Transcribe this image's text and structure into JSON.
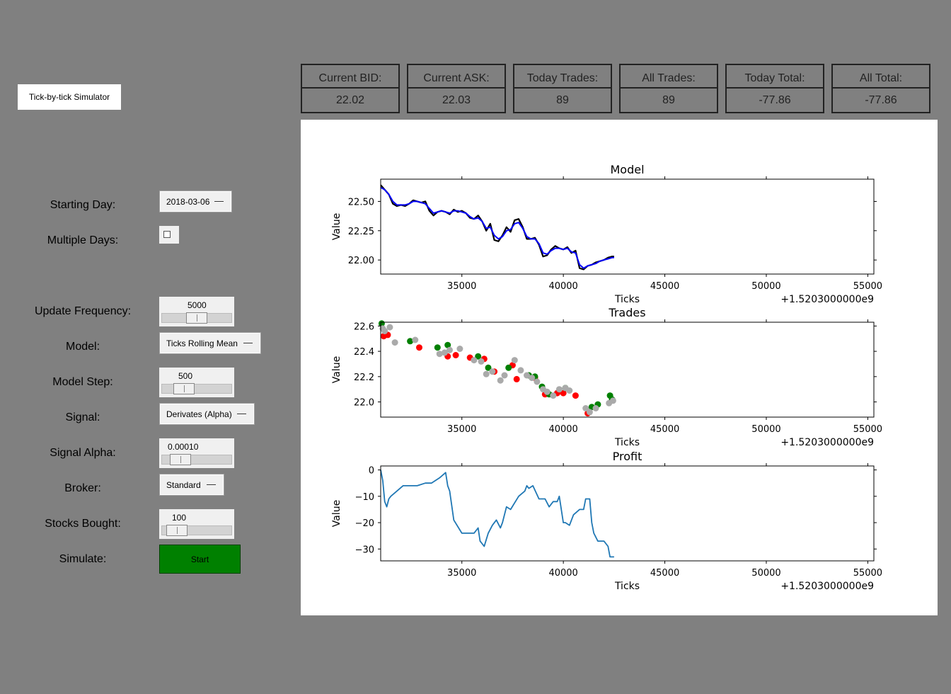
{
  "app": {
    "title_button": "Tick-by-tick Simulator"
  },
  "controls": {
    "starting_day": {
      "label": "Starting Day:",
      "value": "2018-03-06"
    },
    "multiple_days": {
      "label": "Multiple Days:",
      "checked": false
    },
    "update_frequency": {
      "label": "Update Frequency:",
      "value": "5000"
    },
    "model": {
      "label": "Model:",
      "value": "Ticks Rolling Mean"
    },
    "model_step": {
      "label": "Model Step:",
      "value": "500"
    },
    "signal": {
      "label": "Signal:",
      "value": "Derivates (Alpha)"
    },
    "signal_alpha": {
      "label": "Signal Alpha:",
      "value": "0.00010"
    },
    "broker": {
      "label": "Broker:",
      "value": "Standard"
    },
    "stocks_bought": {
      "label": "Stocks Bought:",
      "value": "100"
    },
    "simulate": {
      "label": "Simulate:",
      "button": "Start",
      "color": "#008000"
    }
  },
  "stats": [
    {
      "header": "Current BID:",
      "value": "22.02"
    },
    {
      "header": "Current ASK:",
      "value": "22.03"
    },
    {
      "header": "Today Trades:",
      "value": "89"
    },
    {
      "header": "All Trades:",
      "value": "89"
    },
    {
      "header": "Today Total:",
      "value": "-77.86"
    },
    {
      "header": "All Total:",
      "value": "-77.86"
    }
  ],
  "chart_data": [
    {
      "type": "line",
      "title": "Model",
      "xlabel": "Ticks",
      "ylabel": "Value",
      "x_offset_label": "+1.5203000000e9",
      "xlim": [
        31000,
        55300
      ],
      "ylim": [
        21.88,
        22.69
      ],
      "xticks": [
        35000,
        40000,
        45000,
        50000,
        55000
      ],
      "yticks": [
        22.0,
        22.25,
        22.5
      ],
      "ytick_labels": [
        "22.00",
        "22.25",
        "22.50"
      ],
      "series": [
        {
          "color": "#000000",
          "x": [
            31000,
            31200,
            31400,
            31600,
            31800,
            32000,
            32200,
            32400,
            32600,
            32800,
            33000,
            33200,
            33400,
            33600,
            33800,
            34000,
            34200,
            34400,
            34600,
            34800,
            35000,
            35200,
            35400,
            35600,
            35800,
            36000,
            36200,
            36400,
            36600,
            36800,
            37000,
            37200,
            37400,
            37600,
            37800,
            38000,
            38200,
            38400,
            38600,
            38800,
            39000,
            39200,
            39400,
            39600,
            39800,
            40000,
            40200,
            40400,
            40600,
            40800,
            41000,
            41200,
            41400,
            41600,
            41800,
            42000,
            42200,
            42400,
            42500
          ],
          "y": [
            22.64,
            22.6,
            22.56,
            22.48,
            22.46,
            22.47,
            22.46,
            22.48,
            22.51,
            22.5,
            22.49,
            22.5,
            22.42,
            22.38,
            22.41,
            22.42,
            22.41,
            22.39,
            22.43,
            22.41,
            22.42,
            22.4,
            22.36,
            22.35,
            22.38,
            22.33,
            22.25,
            22.31,
            22.17,
            22.16,
            22.21,
            22.28,
            22.24,
            22.34,
            22.35,
            22.28,
            22.18,
            22.18,
            22.19,
            22.13,
            22.03,
            22.04,
            22.09,
            22.12,
            22.1,
            22.09,
            22.11,
            22.06,
            22.08,
            21.93,
            21.92,
            21.95,
            21.96,
            21.98,
            21.99,
            22.0,
            22.02,
            22.03,
            22.03
          ]
        },
        {
          "color": "#0000ff",
          "x": [
            31000,
            31200,
            31400,
            31600,
            31800,
            32000,
            32200,
            32400,
            32600,
            32800,
            33000,
            33200,
            33400,
            33600,
            33800,
            34000,
            34200,
            34400,
            34600,
            34800,
            35000,
            35200,
            35400,
            35600,
            35800,
            36000,
            36200,
            36400,
            36600,
            36800,
            37000,
            37200,
            37400,
            37600,
            37800,
            38000,
            38200,
            38400,
            38600,
            38800,
            39000,
            39200,
            39400,
            39600,
            39800,
            40000,
            40200,
            40400,
            40600,
            40800,
            41000,
            41200,
            41400,
            41600,
            41800,
            42000,
            42200,
            42400,
            42500
          ],
          "y": [
            22.62,
            22.6,
            22.56,
            22.5,
            22.47,
            22.47,
            22.47,
            22.48,
            22.5,
            22.5,
            22.49,
            22.48,
            22.44,
            22.4,
            22.41,
            22.42,
            22.41,
            22.4,
            22.42,
            22.42,
            22.41,
            22.4,
            22.37,
            22.35,
            22.36,
            22.33,
            22.27,
            22.28,
            22.21,
            22.18,
            22.2,
            22.25,
            22.26,
            22.31,
            22.32,
            22.27,
            22.2,
            22.18,
            22.18,
            22.14,
            22.06,
            22.05,
            22.08,
            22.1,
            22.1,
            22.09,
            22.1,
            22.07,
            22.06,
            21.96,
            21.93,
            21.95,
            21.96,
            21.97,
            21.99,
            22.0,
            22.01,
            22.02,
            22.02
          ]
        }
      ]
    },
    {
      "type": "scatter",
      "title": "Trades",
      "xlabel": "Ticks",
      "ylabel": "Value",
      "x_offset_label": "+1.5203000000e9",
      "xlim": [
        31000,
        55300
      ],
      "ylim": [
        21.88,
        22.63
      ],
      "xticks": [
        35000,
        40000,
        45000,
        50000,
        55000
      ],
      "yticks": [
        22.0,
        22.2,
        22.4,
        22.6
      ],
      "ytick_labels": [
        "22.0",
        "22.2",
        "22.4",
        "22.6"
      ],
      "series": [
        {
          "color": "#ff0000",
          "x": [
            31150,
            31350,
            32900,
            34300,
            34700,
            35400,
            36100,
            36600,
            37500,
            37700,
            38600,
            39100,
            39700,
            40000,
            40600,
            41200
          ],
          "y": [
            22.52,
            22.53,
            22.43,
            22.36,
            22.37,
            22.35,
            22.34,
            22.24,
            22.29,
            22.18,
            22.19,
            22.06,
            22.07,
            22.07,
            22.05,
            21.91
          ]
        },
        {
          "color": "#008000",
          "x": [
            31050,
            32450,
            33800,
            34300,
            35800,
            36300,
            37300,
            38300,
            38600,
            38950,
            39300,
            40100,
            41400,
            41700,
            42300,
            42400
          ],
          "y": [
            22.62,
            22.48,
            22.43,
            22.45,
            22.36,
            22.27,
            22.27,
            22.21,
            22.2,
            22.12,
            22.06,
            22.11,
            21.96,
            21.98,
            22.05,
            22.02
          ]
        },
        {
          "color": "#aaaaaa",
          "x": [
            31100,
            31200,
            31450,
            31700,
            32700,
            33900,
            34150,
            34400,
            34900,
            35600,
            35950,
            36200,
            36500,
            36900,
            37100,
            37600,
            37900,
            38200,
            38450,
            38700,
            39000,
            39200,
            39500,
            39800,
            40100,
            40300,
            41100,
            41300,
            41600,
            42250,
            42450
          ],
          "y": [
            22.58,
            22.56,
            22.59,
            22.47,
            22.49,
            22.38,
            22.39,
            22.41,
            22.42,
            22.33,
            22.32,
            22.22,
            22.24,
            22.17,
            22.21,
            22.33,
            22.25,
            22.21,
            22.19,
            22.16,
            22.1,
            22.08,
            22.05,
            22.1,
            22.11,
            22.09,
            21.95,
            21.92,
            21.95,
            21.99,
            22.01
          ]
        }
      ]
    },
    {
      "type": "line",
      "title": "Profit",
      "xlabel": "Ticks",
      "ylabel": "Value",
      "x_offset_label": "+1.5203000000e9",
      "xlim": [
        31000,
        55300
      ],
      "ylim": [
        -34.5,
        1.5
      ],
      "xticks": [
        35000,
        40000,
        45000,
        50000,
        55000
      ],
      "yticks": [
        0,
        -10,
        -20,
        -30
      ],
      "ytick_labels": [
        "0",
        "−10",
        "−20",
        "−30"
      ],
      "series": [
        {
          "color": "#1f77b4",
          "x": [
            31000,
            31100,
            31200,
            31300,
            31400,
            31500,
            31800,
            32100,
            32500,
            32800,
            33200,
            33500,
            33900,
            34200,
            34300,
            34400,
            34600,
            35000,
            35600,
            35800,
            35900,
            36100,
            36300,
            36500,
            36700,
            36900,
            37000,
            37200,
            37400,
            37800,
            38100,
            38200,
            38300,
            38500,
            38800,
            39100,
            39300,
            39500,
            39700,
            39800,
            40000,
            40100,
            40300,
            40500,
            40800,
            41000,
            41100,
            41300,
            41400,
            41500,
            41700,
            42000,
            42200,
            42300,
            42400,
            42500
          ],
          "y": [
            0,
            -4,
            -12,
            -14,
            -11,
            -10,
            -8,
            -6,
            -6,
            -6,
            -5,
            -5,
            -3,
            -1,
            -6,
            -8,
            -19,
            -24,
            -24,
            -22,
            -27,
            -29,
            -24,
            -21,
            -19,
            -22,
            -20,
            -14,
            -15,
            -10,
            -8,
            -6,
            -7,
            -6,
            -11,
            -11,
            -14,
            -12,
            -12,
            -10,
            -20,
            -20,
            -21,
            -17,
            -15,
            -15,
            -11,
            -11,
            -20,
            -24,
            -27,
            -27,
            -29,
            -33,
            -33,
            -33
          ]
        }
      ]
    }
  ]
}
